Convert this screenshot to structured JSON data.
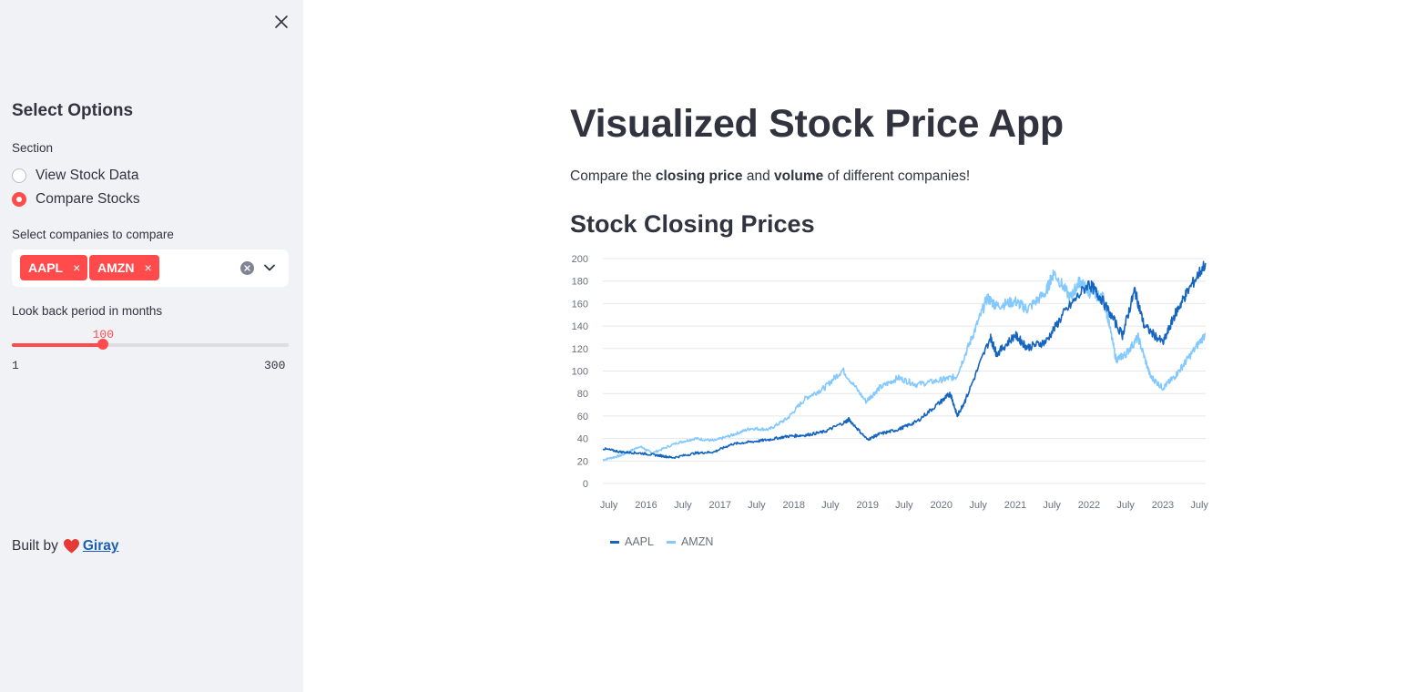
{
  "sidebar": {
    "title": "Select Options",
    "section_label": "Section",
    "radio_options": [
      "View Stock Data",
      "Compare Stocks"
    ],
    "selected_radio": 1,
    "companies_label": "Select companies to compare",
    "selected_companies": [
      "AAPL",
      "AMZN"
    ],
    "tag_close": "×",
    "slider": {
      "label": "Look back period in months",
      "value": "100",
      "min": "1",
      "max": "300",
      "fraction": 0.33
    },
    "footer": {
      "prefix": "Built by",
      "link": "Giray"
    },
    "colors": {
      "accent": "#ff4b4b",
      "background": "#f0f2f6"
    }
  },
  "main": {
    "title": "Visualized Stock Price App",
    "subtitle": {
      "pre": "Compare the ",
      "b1": "closing price",
      "mid": " and ",
      "b2": "volume",
      "post": " of different companies!"
    },
    "chart_title": "Stock Closing Prices"
  },
  "chart_data": {
    "type": "line",
    "title": "Stock Closing Prices",
    "xlabel": "",
    "ylabel": "",
    "xlim": [
      "2015-06-01",
      "2023-08-01"
    ],
    "ylim": [
      0,
      200
    ],
    "y_ticks": [
      0,
      20,
      40,
      60,
      80,
      100,
      120,
      140,
      160,
      180,
      200
    ],
    "x_tick_labels": [
      "July",
      "2016",
      "July",
      "2017",
      "July",
      "2018",
      "July",
      "2019",
      "July",
      "2020",
      "July",
      "2021",
      "July",
      "2022",
      "July",
      "2023",
      "July"
    ],
    "x_tick_dates": [
      "2015-07-01",
      "2016-01-01",
      "2016-07-01",
      "2017-01-01",
      "2017-07-01",
      "2018-01-01",
      "2018-07-01",
      "2019-01-01",
      "2019-07-01",
      "2020-01-01",
      "2020-07-01",
      "2021-01-01",
      "2021-07-01",
      "2022-01-01",
      "2022-07-01",
      "2023-01-01",
      "2023-07-01"
    ],
    "grid": true,
    "legend_position": "bottom-left",
    "series": [
      {
        "name": "AAPL",
        "color": "#1565c0",
        "points": [
          [
            "2015-06-01",
            31
          ],
          [
            "2015-09-01",
            28
          ],
          [
            "2015-12-01",
            27
          ],
          [
            "2016-03-01",
            25
          ],
          [
            "2016-05-15",
            23
          ],
          [
            "2016-09-01",
            27
          ],
          [
            "2016-12-01",
            28
          ],
          [
            "2017-03-01",
            35
          ],
          [
            "2017-06-01",
            37
          ],
          [
            "2017-09-01",
            39
          ],
          [
            "2017-12-01",
            42
          ],
          [
            "2018-03-01",
            43
          ],
          [
            "2018-06-01",
            46
          ],
          [
            "2018-09-15",
            55
          ],
          [
            "2018-10-01",
            57
          ],
          [
            "2018-12-31",
            39
          ],
          [
            "2019-03-01",
            44
          ],
          [
            "2019-06-01",
            48
          ],
          [
            "2019-09-01",
            55
          ],
          [
            "2019-12-31",
            73
          ],
          [
            "2020-02-15",
            80
          ],
          [
            "2020-03-20",
            60
          ],
          [
            "2020-05-01",
            75
          ],
          [
            "2020-08-31",
            130
          ],
          [
            "2020-10-01",
            115
          ],
          [
            "2020-12-31",
            132
          ],
          [
            "2021-03-01",
            121
          ],
          [
            "2021-06-01",
            126
          ],
          [
            "2021-09-01",
            152
          ],
          [
            "2021-12-31",
            178
          ],
          [
            "2022-03-01",
            165
          ],
          [
            "2022-06-15",
            132
          ],
          [
            "2022-08-15",
            172
          ],
          [
            "2022-10-01",
            140
          ],
          [
            "2023-01-03",
            125
          ],
          [
            "2023-03-01",
            150
          ],
          [
            "2023-05-01",
            170
          ],
          [
            "2023-07-31",
            196
          ]
        ]
      },
      {
        "name": "AMZN",
        "color": "#83c9ff",
        "points": [
          [
            "2015-06-01",
            21
          ],
          [
            "2015-09-01",
            25
          ],
          [
            "2015-12-01",
            33
          ],
          [
            "2016-02-01",
            27
          ],
          [
            "2016-06-01",
            36
          ],
          [
            "2016-09-01",
            40
          ],
          [
            "2016-12-01",
            38
          ],
          [
            "2017-03-01",
            43
          ],
          [
            "2017-06-01",
            49
          ],
          [
            "2017-09-01",
            48
          ],
          [
            "2017-12-01",
            58
          ],
          [
            "2018-03-01",
            76
          ],
          [
            "2018-06-01",
            85
          ],
          [
            "2018-08-31",
            101
          ],
          [
            "2018-12-24",
            73
          ],
          [
            "2019-03-01",
            85
          ],
          [
            "2019-06-01",
            94
          ],
          [
            "2019-09-01",
            88
          ],
          [
            "2019-12-31",
            92
          ],
          [
            "2020-03-15",
            95
          ],
          [
            "2020-06-01",
            130
          ],
          [
            "2020-08-15",
            165
          ],
          [
            "2020-10-01",
            158
          ],
          [
            "2020-12-31",
            162
          ],
          [
            "2021-03-01",
            155
          ],
          [
            "2021-06-01",
            170
          ],
          [
            "2021-07-10",
            188
          ],
          [
            "2021-10-01",
            165
          ],
          [
            "2021-11-15",
            180
          ],
          [
            "2022-01-01",
            170
          ],
          [
            "2022-03-15",
            165
          ],
          [
            "2022-05-15",
            110
          ],
          [
            "2022-07-01",
            115
          ],
          [
            "2022-09-01",
            130
          ],
          [
            "2022-11-01",
            95
          ],
          [
            "2023-01-01",
            85
          ],
          [
            "2023-03-01",
            95
          ],
          [
            "2023-05-01",
            110
          ],
          [
            "2023-07-31",
            133
          ]
        ]
      }
    ]
  }
}
